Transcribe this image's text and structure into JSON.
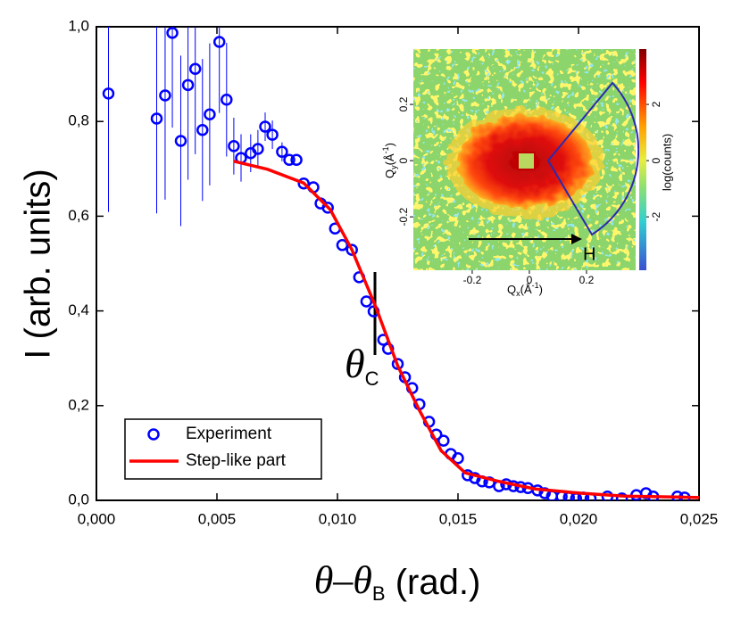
{
  "chart_data": [
    {
      "type": "scatter",
      "x_label": [
        "θ–θ",
        "B",
        " (rad.)"
      ],
      "y_label": "I (arb. units)",
      "annotation": [
        "θ",
        "C"
      ],
      "legend": "lower left",
      "xlim": [
        0,
        0.025
      ],
      "ylim": [
        0,
        1
      ],
      "xticks": [
        {
          "value": 0,
          "label": "0,000"
        },
        {
          "value": 0.005,
          "label": "0,005"
        },
        {
          "value": 0.01,
          "label": "0,010"
        },
        {
          "value": 0.015,
          "label": "0,015"
        },
        {
          "value": 0.02,
          "label": "0,020"
        },
        {
          "value": 0.025,
          "label": "0,025"
        }
      ],
      "yticks": [
        {
          "value": 0,
          "label": "0,0"
        },
        {
          "value": 0.2,
          "label": "0,2"
        },
        {
          "value": 0.4,
          "label": "0,4"
        },
        {
          "value": 0.6,
          "label": "0,6"
        },
        {
          "value": 0.8,
          "label": "0,8"
        },
        {
          "value": 1,
          "label": "1,0"
        }
      ],
      "series": [
        {
          "name": "Experiment",
          "type": "scatter",
          "color": "#0000ff",
          "x": [
            0.0005,
            0.0025,
            0.00285,
            0.00315,
            0.0035,
            0.0038,
            0.0041,
            0.0044,
            0.0047,
            0.0051,
            0.0054,
            0.0057,
            0.006,
            0.0064,
            0.0067,
            0.007,
            0.0073,
            0.0077,
            0.008,
            0.0083,
            0.0086,
            0.009,
            0.0093,
            0.0096,
            0.0099,
            0.0102,
            0.0106,
            0.0109,
            0.0112,
            0.0115,
            0.0119,
            0.0121,
            0.0125,
            0.0128,
            0.0131,
            0.0134,
            0.0138,
            0.0141,
            0.0144,
            0.0147,
            0.015,
            0.0154,
            0.0157,
            0.016,
            0.0163,
            0.0167,
            0.017,
            0.0173,
            0.0176,
            0.0179,
            0.0183,
            0.0186,
            0.0189,
            0.0193,
            0.0196,
            0.0199,
            0.0202,
            0.0205,
            0.0212,
            0.0218,
            0.0224,
            0.0228,
            0.0231,
            0.0241,
            0.0244
          ],
          "values": [
            0.859,
            0.806,
            0.855,
            0.987,
            0.759,
            0.877,
            0.911,
            0.782,
            0.815,
            0.968,
            0.846,
            0.748,
            0.723,
            0.733,
            0.742,
            0.789,
            0.772,
            0.736,
            0.719,
            0.719,
            0.669,
            0.661,
            0.627,
            0.618,
            0.574,
            0.539,
            0.529,
            0.471,
            0.42,
            0.399,
            0.339,
            0.32,
            0.288,
            0.26,
            0.237,
            0.203,
            0.166,
            0.139,
            0.126,
            0.098,
            0.089,
            0.053,
            0.047,
            0.04,
            0.038,
            0.03,
            0.034,
            0.03,
            0.028,
            0.026,
            0.021,
            0.015,
            0.009,
            0.008,
            0.006,
            0.004,
            0.006,
            0.004,
            0.008,
            0.004,
            0.011,
            0.015,
            0.008,
            0.008,
            0.006
          ],
          "errors": [
            0.25,
            0.2,
            0.22,
            0.2,
            0.18,
            0.2,
            0.18,
            0.15,
            0.15,
            0.15,
            0.12,
            0.06,
            0.05,
            0.04,
            0.04,
            0.03,
            0.03,
            0.02,
            0,
            0,
            0,
            0,
            0,
            0,
            0,
            0,
            0,
            0,
            0,
            0,
            0,
            0,
            0,
            0,
            0,
            0,
            0,
            0,
            0,
            0,
            0,
            0,
            0,
            0,
            0,
            0,
            0,
            0,
            0,
            0,
            0,
            0,
            0,
            0,
            0,
            0,
            0,
            0,
            0,
            0,
            0,
            0,
            0,
            0,
            0
          ]
        },
        {
          "name": "Step-like part",
          "type": "line",
          "color": "#ff0000",
          "x": [
            0.0057,
            0.0071,
            0.0086,
            0.0097,
            0.0106,
            0.0116,
            0.0125,
            0.0134,
            0.0143,
            0.0153,
            0.0167,
            0.0182,
            0.0201,
            0.0219,
            0.025
          ],
          "values": [
            0.716,
            0.699,
            0.67,
            0.614,
            0.529,
            0.407,
            0.284,
            0.19,
            0.105,
            0.058,
            0.04,
            0.024,
            0.015,
            0.009,
            0.006
          ]
        }
      ]
    },
    {
      "type": "heatmap",
      "x_label": [
        "Q",
        "x",
        "(Å",
        "-1",
        ")"
      ],
      "y_label": [
        "Q",
        "y",
        "(Å",
        "-1",
        ")"
      ],
      "colorbar_label": "log(counts)",
      "annotation": "H",
      "xlim": [
        -0.406,
        0.372
      ],
      "ylim": [
        -0.39,
        0.397
      ],
      "xticks": [
        -0.2,
        0,
        0.2
      ],
      "yticks": [
        -0.2,
        0,
        0.2
      ],
      "clim": [
        -3.9,
        3.97
      ],
      "cticks": [
        -2,
        0,
        2
      ]
    }
  ]
}
